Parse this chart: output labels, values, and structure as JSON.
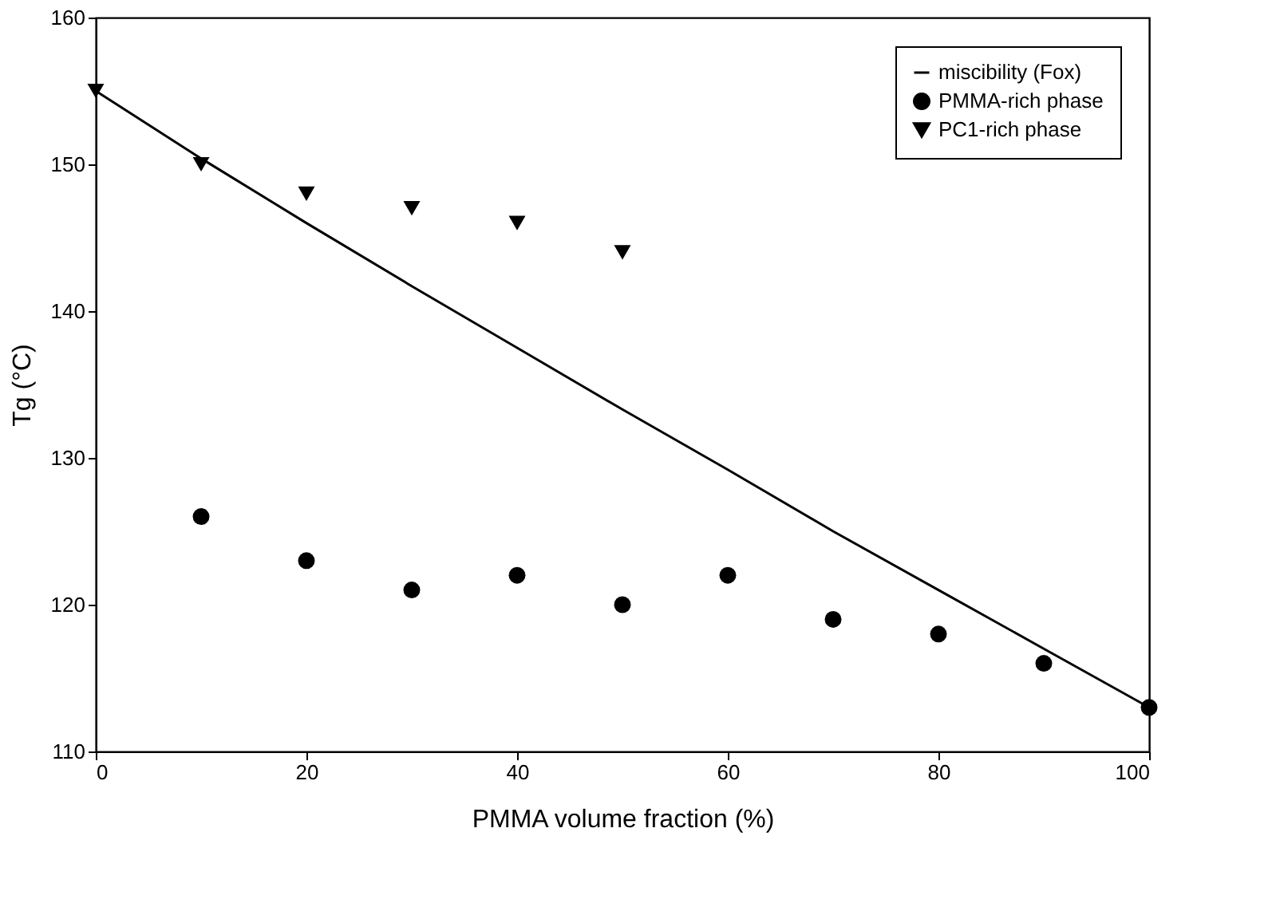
{
  "chart_data": {
    "type": "scatter",
    "xlabel": "PMMA volume fraction (%)",
    "ylabel": "Tg (°C)",
    "xlim": [
      0,
      100
    ],
    "xticks": [
      0,
      20,
      40,
      60,
      80,
      100
    ],
    "ylim": [
      110,
      160
    ],
    "yticks": [
      110,
      120,
      130,
      140,
      150,
      160
    ],
    "grid": false,
    "legend": "top right",
    "series": [
      {
        "name": "miscibility (Fox)",
        "type": "line",
        "marker": "none",
        "line_style": "solid",
        "color": "#000000",
        "x": [
          0,
          10,
          20,
          30,
          40,
          50,
          60,
          70,
          80,
          90,
          100
        ],
        "values": [
          155,
          150.4,
          146,
          141.7,
          137.5,
          133.3,
          129.2,
          125,
          121,
          117,
          113
        ]
      },
      {
        "name": "PMMA-rich phase",
        "type": "scatter",
        "marker": "circle",
        "color": "#000000",
        "x": [
          10,
          20,
          30,
          40,
          50,
          60,
          70,
          80,
          90,
          100
        ],
        "values": [
          126,
          123,
          121,
          122,
          120,
          122,
          119,
          118,
          116,
          113
        ]
      },
      {
        "name": "PC1-rich phase",
        "type": "scatter",
        "marker": "triangle",
        "color": "#000000",
        "x": [
          0,
          10,
          20,
          30,
          40,
          50
        ],
        "values": [
          155,
          150,
          148,
          147,
          146,
          144
        ]
      }
    ]
  }
}
